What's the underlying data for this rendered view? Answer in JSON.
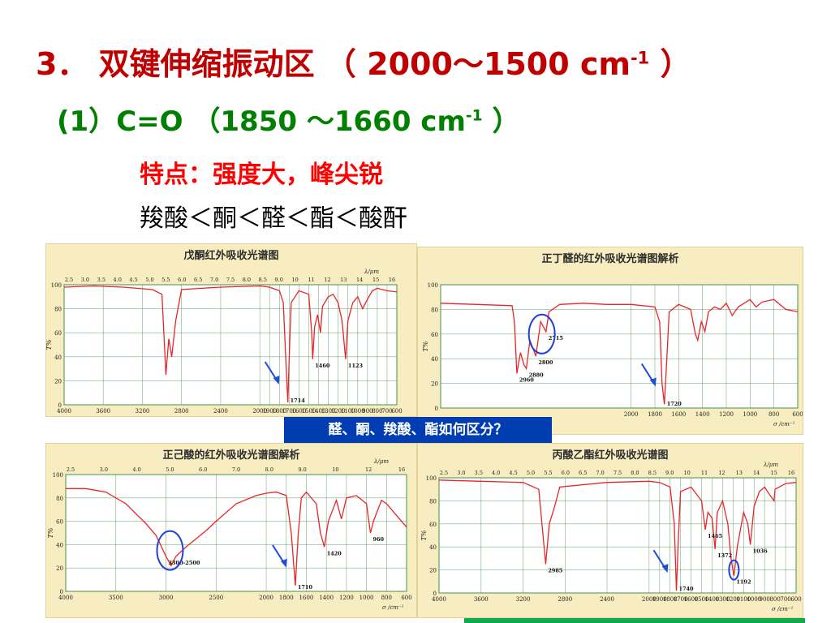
{
  "slide": {
    "title_main": "3． 双键伸缩振动区 （ 2000～1500 cm",
    "title_sup": "-1",
    "title_tail": " ）",
    "subtitle_main": "(1）C=O （1850 ～1660 cm",
    "subtitle_sup": "-1",
    "subtitle_tail": " ）",
    "feature": "特点：强度大，峰尖锐",
    "order": "羧酸＜酮＜醛＜酯＜酸酐",
    "question": "醛、酮、羧酸、酯如何区分？"
  },
  "colors": {
    "spectrum": "#e8262a",
    "grid_line": "#4a8f4a",
    "panel_bg": "#f7edc0",
    "arrow": "#1f4fd8",
    "circle": "#1f3fd8"
  },
  "chart_data": [
    {
      "id": "pentanone",
      "type": "line",
      "title": "戊酮红外吸收光谱图",
      "xlabel": "",
      "ylabel": "T%",
      "wavelength_label": "λ/μm",
      "xlim": [
        4000,
        600
      ],
      "ylim": [
        0,
        100
      ],
      "grid": true,
      "x_ticks": [
        4000,
        3600,
        3200,
        2800,
        2400,
        2000,
        1900,
        1800,
        1700,
        1600,
        1500,
        1400,
        1300,
        1200,
        1100,
        1000,
        900,
        800,
        700,
        600
      ],
      "y_ticks": [
        0,
        20,
        40,
        60,
        80,
        100
      ],
      "wavelength_ticks": [
        "2.5",
        "3.0",
        "3.5",
        "4.0",
        "4.5",
        "5.0",
        "5.5",
        "6.0",
        "6.5",
        "7.0",
        "7.5",
        "8.0",
        "8.5",
        "9.0",
        "10",
        "11",
        "12",
        "13",
        "14",
        "15",
        "16"
      ],
      "series": [
        {
          "points": [
            [
              4000,
              98
            ],
            [
              3700,
              99
            ],
            [
              3400,
              98
            ],
            [
              3100,
              96
            ],
            [
              3000,
              92
            ],
            [
              2960,
              25
            ],
            [
              2930,
              55
            ],
            [
              2900,
              40
            ],
            [
              2860,
              70
            ],
            [
              2800,
              96
            ],
            [
              2400,
              98
            ],
            [
              2000,
              99
            ],
            [
              1900,
              98
            ],
            [
              1800,
              95
            ],
            [
              1760,
              85
            ],
            [
              1730,
              30
            ],
            [
              1714,
              2
            ],
            [
              1700,
              40
            ],
            [
              1680,
              85
            ],
            [
              1600,
              95
            ],
            [
              1500,
              92
            ],
            [
              1470,
              60
            ],
            [
              1460,
              38
            ],
            [
              1440,
              65
            ],
            [
              1410,
              75
            ],
            [
              1380,
              60
            ],
            [
              1360,
              82
            ],
            [
              1300,
              90
            ],
            [
              1250,
              92
            ],
            [
              1200,
              85
            ],
            [
              1160,
              70
            ],
            [
              1123,
              38
            ],
            [
              1100,
              70
            ],
            [
              1050,
              85
            ],
            [
              1000,
              90
            ],
            [
              950,
              80
            ],
            [
              900,
              88
            ],
            [
              850,
              95
            ],
            [
              800,
              97
            ],
            [
              700,
              95
            ],
            [
              600,
              94
            ]
          ]
        }
      ],
      "peak_labels": [
        {
          "x": 1714,
          "label": "1714"
        },
        {
          "x": 1460,
          "label": "1460"
        },
        {
          "x": 1123,
          "label": "1123"
        }
      ],
      "arrow_at": 1714
    },
    {
      "id": "butanal",
      "type": "line",
      "title": "正丁醛的红外吸收光谱图解析",
      "xlabel": "σ /cm⁻¹",
      "ylabel": "T%",
      "xlim": [
        3600,
        600
      ],
      "ylim": [
        0,
        100
      ],
      "grid": true,
      "x_ticks": [
        2000,
        1800,
        1600,
        1400,
        1200,
        1000,
        800,
        600
      ],
      "y_ticks": [
        0,
        20,
        40,
        60,
        80,
        100
      ],
      "series": [
        {
          "points": [
            [
              3600,
              85
            ],
            [
              3300,
              84
            ],
            [
              3000,
              83
            ],
            [
              2980,
              70
            ],
            [
              2960,
              28
            ],
            [
              2930,
              45
            ],
            [
              2900,
              35
            ],
            [
              2880,
              32
            ],
            [
              2850,
              55
            ],
            [
              2800,
              42
            ],
            [
              2760,
              70
            ],
            [
              2715,
              62
            ],
            [
              2690,
              78
            ],
            [
              2600,
              84
            ],
            [
              2400,
              85
            ],
            [
              2200,
              84
            ],
            [
              2000,
              84
            ],
            [
              1800,
              82
            ],
            [
              1760,
              70
            ],
            [
              1740,
              20
            ],
            [
              1720,
              3
            ],
            [
              1700,
              40
            ],
            [
              1680,
              78
            ],
            [
              1600,
              84
            ],
            [
              1500,
              80
            ],
            [
              1460,
              60
            ],
            [
              1440,
              55
            ],
            [
              1410,
              70
            ],
            [
              1380,
              62
            ],
            [
              1350,
              78
            ],
            [
              1300,
              82
            ],
            [
              1250,
              80
            ],
            [
              1200,
              85
            ],
            [
              1150,
              75
            ],
            [
              1100,
              82
            ],
            [
              1000,
              88
            ],
            [
              950,
              82
            ],
            [
              900,
              86
            ],
            [
              800,
              88
            ],
            [
              700,
              80
            ],
            [
              600,
              78
            ]
          ]
        }
      ],
      "peak_labels": [
        {
          "x": 2960,
          "label": "2960"
        },
        {
          "x": 2880,
          "label": "2880"
        },
        {
          "x": 2800,
          "label": "2800"
        },
        {
          "x": 2715,
          "label": "2715"
        },
        {
          "x": 1720,
          "label": "1720"
        }
      ],
      "arrow_at": 1720,
      "circle_at": [
        2750,
        60
      ]
    },
    {
      "id": "hexanoic-acid",
      "type": "line",
      "title": "正己酸的红外吸收光谱图解析",
      "xlabel": "σ /cm⁻¹",
      "ylabel": "T%",
      "wavelength_label": "λ/μm",
      "xlim": [
        4000,
        600
      ],
      "ylim": [
        0,
        100
      ],
      "grid": true,
      "x_ticks": [
        4000,
        3500,
        3000,
        2500,
        2000,
        1800,
        1600,
        1400,
        1200,
        1000,
        800,
        600
      ],
      "y_ticks": [
        0,
        20,
        40,
        60,
        80,
        100
      ],
      "wavelength_ticks": [
        "2.5",
        "3.0",
        "4.0",
        "5.0",
        "6.0",
        "7.0",
        "8.0",
        "9.0",
        "10",
        "12",
        "16"
      ],
      "series": [
        {
          "points": [
            [
              4000,
              88
            ],
            [
              3800,
              88
            ],
            [
              3600,
              85
            ],
            [
              3400,
              75
            ],
            [
              3200,
              58
            ],
            [
              3100,
              48
            ],
            [
              3000,
              30
            ],
            [
              2950,
              22
            ],
            [
              2900,
              30
            ],
            [
              2800,
              38
            ],
            [
              2700,
              45
            ],
            [
              2600,
              52
            ],
            [
              2500,
              60
            ],
            [
              2300,
              75
            ],
            [
              2100,
              82
            ],
            [
              2000,
              84
            ],
            [
              1900,
              85
            ],
            [
              1800,
              82
            ],
            [
              1750,
              50
            ],
            [
              1710,
              5
            ],
            [
              1680,
              50
            ],
            [
              1650,
              80
            ],
            [
              1600,
              85
            ],
            [
              1500,
              75
            ],
            [
              1460,
              50
            ],
            [
              1420,
              38
            ],
            [
              1380,
              60
            ],
            [
              1300,
              78
            ],
            [
              1250,
              62
            ],
            [
              1200,
              80
            ],
            [
              1100,
              82
            ],
            [
              1000,
              75
            ],
            [
              960,
              50
            ],
            [
              930,
              60
            ],
            [
              850,
              78
            ],
            [
              800,
              75
            ],
            [
              700,
              65
            ],
            [
              600,
              55
            ]
          ]
        }
      ],
      "peak_labels": [
        {
          "x": 3000,
          "label": "3300-2500"
        },
        {
          "x": 1710,
          "label": "1710"
        },
        {
          "x": 1420,
          "label": "1420"
        },
        {
          "x": 960,
          "label": "960"
        }
      ],
      "arrow_at": 1710,
      "circle_at": [
        2960,
        35
      ]
    },
    {
      "id": "ethyl-propanoate",
      "type": "line",
      "title": "丙酸乙酯红外吸收光谱图",
      "xlabel": "σ /cm⁻¹",
      "ylabel": "T%",
      "wavelength_label": "λ/μm",
      "xlim": [
        4000,
        600
      ],
      "ylim": [
        0,
        100
      ],
      "grid": true,
      "x_ticks": [
        4000,
        3600,
        3200,
        2800,
        2400,
        2000,
        1900,
        1800,
        1700,
        1600,
        1500,
        1400,
        1300,
        1200,
        1100,
        1000,
        900,
        800,
        700,
        600
      ],
      "y_ticks": [
        0,
        20,
        40,
        60,
        80,
        100
      ],
      "wavelength_ticks": [
        "2.5",
        "3.0",
        "3.5",
        "4.0",
        "4.5",
        "5.0",
        "5.5",
        "6.0",
        "6.5",
        "7.0",
        "7.5",
        "8.0",
        "8.5",
        "9.0",
        "10",
        "11",
        "12",
        "13",
        "14",
        "15",
        "16"
      ],
      "series": [
        {
          "points": [
            [
              4000,
              98
            ],
            [
              3600,
              97
            ],
            [
              3200,
              96
            ],
            [
              3050,
              90
            ],
            [
              2985,
              25
            ],
            [
              2950,
              60
            ],
            [
              2900,
              75
            ],
            [
              2850,
              92
            ],
            [
              2400,
              96
            ],
            [
              2000,
              97
            ],
            [
              1900,
              96
            ],
            [
              1800,
              92
            ],
            [
              1760,
              60
            ],
            [
              1740,
              2
            ],
            [
              1720,
              50
            ],
            [
              1700,
              88
            ],
            [
              1600,
              92
            ],
            [
              1500,
              80
            ],
            [
              1465,
              55
            ],
            [
              1440,
              70
            ],
            [
              1400,
              65
            ],
            [
              1372,
              38
            ],
            [
              1350,
              70
            ],
            [
              1300,
              80
            ],
            [
              1250,
              60
            ],
            [
              1220,
              30
            ],
            [
              1192,
              15
            ],
            [
              1160,
              40
            ],
            [
              1100,
              70
            ],
            [
              1060,
              60
            ],
            [
              1036,
              42
            ],
            [
              1000,
              75
            ],
            [
              950,
              88
            ],
            [
              900,
              92
            ],
            [
              850,
              85
            ],
            [
              810,
              80
            ],
            [
              800,
              90
            ],
            [
              700,
              95
            ],
            [
              600,
              96
            ]
          ]
        }
      ],
      "peak_labels": [
        {
          "x": 2985,
          "label": "2985"
        },
        {
          "x": 1740,
          "label": "1740"
        },
        {
          "x": 1465,
          "label": "1465"
        },
        {
          "x": 1372,
          "label": "1372"
        },
        {
          "x": 1192,
          "label": "1192"
        },
        {
          "x": 1036,
          "label": "1036"
        }
      ],
      "arrow_at": 1740,
      "circle_at": [
        1192,
        20
      ]
    }
  ]
}
